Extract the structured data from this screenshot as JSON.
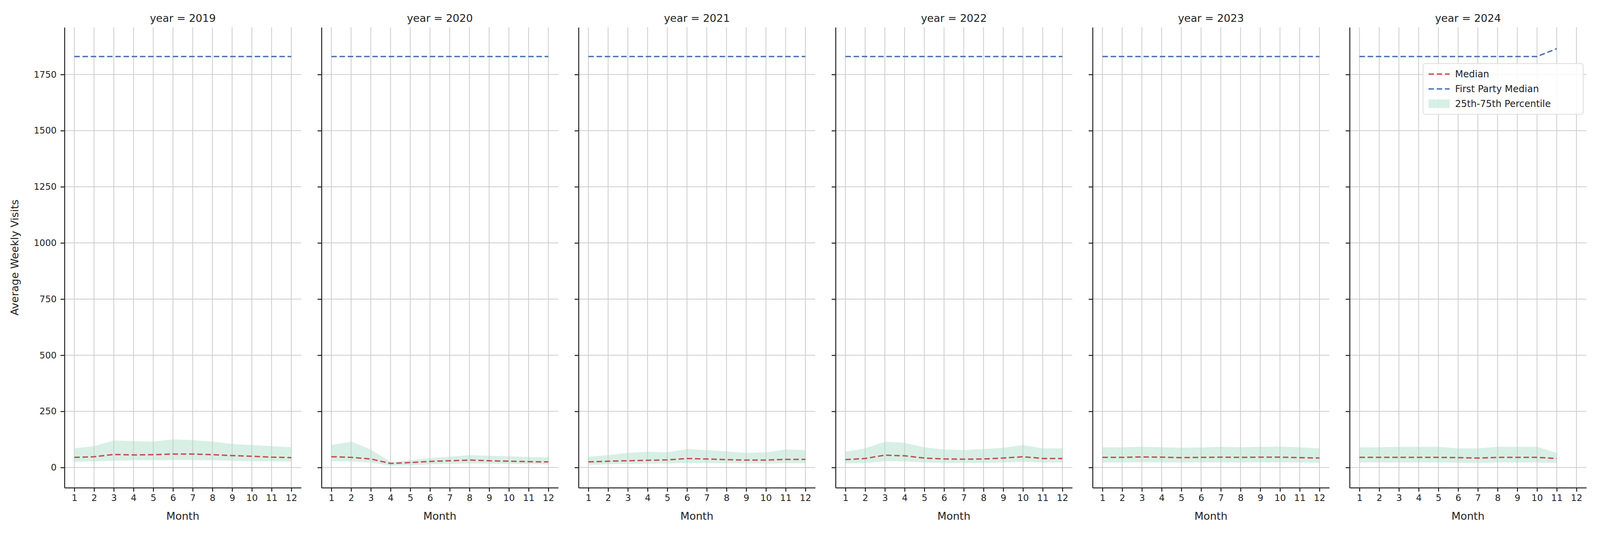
{
  "chart_data": [
    {
      "type": "line",
      "title": "year = 2019",
      "x_label": "Month",
      "y_label": "Average Weekly Visits",
      "x": [
        1,
        2,
        3,
        4,
        5,
        6,
        7,
        8,
        9,
        10,
        11,
        12
      ],
      "xlim": [
        0.5,
        12.5
      ],
      "xticks": [
        1,
        2,
        3,
        4,
        5,
        6,
        7,
        8,
        9,
        10,
        11,
        12
      ],
      "ylim": [
        -90,
        1960
      ],
      "yticks": [
        0,
        250,
        500,
        750,
        1000,
        1250,
        1500,
        1750
      ],
      "grid": true,
      "series": [
        {
          "name": "Median",
          "color": "#c44e52",
          "line_style": "dashed",
          "values": [
            45,
            48,
            58,
            56,
            57,
            60,
            60,
            57,
            53,
            50,
            46,
            44
          ]
        },
        {
          "name": "First Party Median",
          "color": "#4c72b0",
          "line_style": "dashed",
          "values": [
            1830,
            1830,
            1830,
            1830,
            1830,
            1830,
            1830,
            1830,
            1830,
            1830,
            1830,
            1830
          ]
        },
        {
          "name": "25th-75th Percentile",
          "type": "area",
          "color": "#a8dcc8",
          "lower": [
            25,
            27,
            30,
            32,
            32,
            33,
            33,
            32,
            30,
            28,
            27,
            26
          ],
          "upper": [
            85,
            95,
            120,
            118,
            115,
            125,
            122,
            115,
            105,
            100,
            95,
            90
          ]
        }
      ]
    },
    {
      "type": "line",
      "title": "year = 2020",
      "x_label": "Month",
      "tick_labels": "x",
      "x": [
        1,
        2,
        3,
        4,
        5,
        6,
        7,
        8,
        9,
        10,
        11,
        12
      ],
      "xlim": [
        0.5,
        12.5
      ],
      "xticks": [
        1,
        2,
        3,
        4,
        5,
        6,
        7,
        8,
        9,
        10,
        11,
        12
      ],
      "ylim": [
        -90,
        1960
      ],
      "yticks": [
        0,
        250,
        500,
        750,
        1000,
        1250,
        1500,
        1750
      ],
      "grid": true,
      "series": [
        {
          "name": "Median",
          "color": "#c44e52",
          "line_style": "dashed",
          "values": [
            48,
            45,
            38,
            18,
            22,
            27,
            30,
            33,
            30,
            28,
            26,
            25
          ]
        },
        {
          "name": "First Party Median",
          "color": "#4c72b0",
          "line_style": "dashed",
          "values": [
            1830,
            1830,
            1830,
            1830,
            1830,
            1830,
            1830,
            1830,
            1830,
            1830,
            1830,
            1830
          ]
        },
        {
          "name": "25th-75th Percentile",
          "type": "area",
          "color": "#a8dcc8",
          "lower": [
            28,
            27,
            22,
            8,
            10,
            14,
            16,
            18,
            17,
            16,
            15,
            14
          ],
          "upper": [
            100,
            115,
            80,
            25,
            32,
            42,
            48,
            55,
            52,
            50,
            47,
            45
          ]
        }
      ]
    },
    {
      "type": "line",
      "title": "year = 2021",
      "x_label": "Month",
      "tick_labels": "x",
      "x": [
        1,
        2,
        3,
        4,
        5,
        6,
        7,
        8,
        9,
        10,
        11,
        12
      ],
      "xlim": [
        0.5,
        12.5
      ],
      "xticks": [
        1,
        2,
        3,
        4,
        5,
        6,
        7,
        8,
        9,
        10,
        11,
        12
      ],
      "ylim": [
        -90,
        1960
      ],
      "yticks": [
        0,
        250,
        500,
        750,
        1000,
        1250,
        1500,
        1750
      ],
      "grid": true,
      "series": [
        {
          "name": "Median",
          "color": "#c44e52",
          "line_style": "dashed",
          "values": [
            25,
            28,
            30,
            32,
            34,
            40,
            38,
            35,
            33,
            33,
            36,
            36
          ]
        },
        {
          "name": "First Party Median",
          "color": "#4c72b0",
          "line_style": "dashed",
          "values": [
            1830,
            1830,
            1830,
            1830,
            1830,
            1830,
            1830,
            1830,
            1830,
            1830,
            1830,
            1830
          ]
        },
        {
          "name": "25th-75th Percentile",
          "type": "area",
          "color": "#a8dcc8",
          "lower": [
            12,
            14,
            16,
            17,
            18,
            20,
            20,
            19,
            18,
            18,
            19,
            19
          ],
          "upper": [
            48,
            55,
            65,
            70,
            68,
            82,
            78,
            72,
            65,
            68,
            80,
            78
          ]
        }
      ]
    },
    {
      "type": "line",
      "title": "year = 2022",
      "x_label": "Month",
      "tick_labels": "x",
      "x": [
        1,
        2,
        3,
        4,
        5,
        6,
        7,
        8,
        9,
        10,
        11,
        12
      ],
      "xlim": [
        0.5,
        12.5
      ],
      "xticks": [
        1,
        2,
        3,
        4,
        5,
        6,
        7,
        8,
        9,
        10,
        11,
        12
      ],
      "ylim": [
        -90,
        1960
      ],
      "yticks": [
        0,
        250,
        500,
        750,
        1000,
        1250,
        1500,
        1750
      ],
      "grid": true,
      "series": [
        {
          "name": "Median",
          "color": "#c44e52",
          "line_style": "dashed",
          "values": [
            35,
            40,
            55,
            52,
            42,
            38,
            37,
            38,
            42,
            48,
            40,
            40
          ]
        },
        {
          "name": "First Party Median",
          "color": "#4c72b0",
          "line_style": "dashed",
          "values": [
            1830,
            1830,
            1830,
            1830,
            1830,
            1830,
            1830,
            1830,
            1830,
            1830,
            1830,
            1830
          ]
        },
        {
          "name": "25th-75th Percentile",
          "type": "area",
          "color": "#a8dcc8",
          "lower": [
            18,
            20,
            28,
            27,
            22,
            20,
            20,
            20,
            22,
            25,
            22,
            22
          ],
          "upper": [
            70,
            85,
            115,
            110,
            90,
            80,
            78,
            82,
            88,
            100,
            85,
            85
          ]
        }
      ]
    },
    {
      "type": "line",
      "title": "year = 2023",
      "x_label": "Month",
      "tick_labels": "x",
      "x": [
        1,
        2,
        3,
        4,
        5,
        6,
        7,
        8,
        9,
        10,
        11,
        12
      ],
      "xlim": [
        0.5,
        12.5
      ],
      "xticks": [
        1,
        2,
        3,
        4,
        5,
        6,
        7,
        8,
        9,
        10,
        11,
        12
      ],
      "ylim": [
        -90,
        1960
      ],
      "yticks": [
        0,
        250,
        500,
        750,
        1000,
        1250,
        1500,
        1750
      ],
      "grid": true,
      "series": [
        {
          "name": "Median",
          "color": "#c44e52",
          "line_style": "dashed",
          "values": [
            45,
            45,
            47,
            46,
            44,
            45,
            46,
            45,
            46,
            46,
            44,
            42
          ]
        },
        {
          "name": "First Party Median",
          "color": "#4c72b0",
          "line_style": "dashed",
          "values": [
            1830,
            1830,
            1830,
            1830,
            1830,
            1830,
            1830,
            1830,
            1830,
            1830,
            1830,
            1830
          ]
        },
        {
          "name": "25th-75th Percentile",
          "type": "area",
          "color": "#a8dcc8",
          "lower": [
            22,
            22,
            23,
            23,
            22,
            22,
            23,
            22,
            23,
            23,
            22,
            21
          ],
          "upper": [
            90,
            90,
            92,
            90,
            88,
            89,
            92,
            90,
            92,
            93,
            90,
            85
          ]
        }
      ]
    },
    {
      "type": "line",
      "title": "year = 2024",
      "x_label": "Month",
      "tick_labels": "x",
      "legend": "upper right",
      "x": [
        1,
        2,
        3,
        4,
        5,
        6,
        7,
        8,
        9,
        10,
        11,
        12
      ],
      "xlim": [
        0.5,
        12.5
      ],
      "xticks": [
        1,
        2,
        3,
        4,
        5,
        6,
        7,
        8,
        9,
        10,
        11,
        12
      ],
      "ylim": [
        -90,
        1960
      ],
      "yticks": [
        0,
        250,
        500,
        750,
        1000,
        1250,
        1500,
        1750
      ],
      "grid": true,
      "series": [
        {
          "name": "Median",
          "color": "#c44e52",
          "line_style": "dashed",
          "values": [
            45,
            45,
            45,
            45,
            45,
            44,
            42,
            45,
            45,
            45,
            40,
            null
          ]
        },
        {
          "name": "First Party Median",
          "color": "#4c72b0",
          "line_style": "dashed",
          "values": [
            1830,
            1830,
            1830,
            1830,
            1830,
            1830,
            1830,
            1830,
            1830,
            1830,
            1865,
            null
          ]
        },
        {
          "name": "25th-75th Percentile",
          "type": "area",
          "color": "#a8dcc8",
          "lower": [
            22,
            22,
            22,
            22,
            22,
            21,
            20,
            22,
            22,
            22,
            20,
            null
          ],
          "upper": [
            90,
            90,
            92,
            92,
            92,
            85,
            85,
            92,
            92,
            92,
            65,
            null
          ]
        }
      ]
    }
  ]
}
